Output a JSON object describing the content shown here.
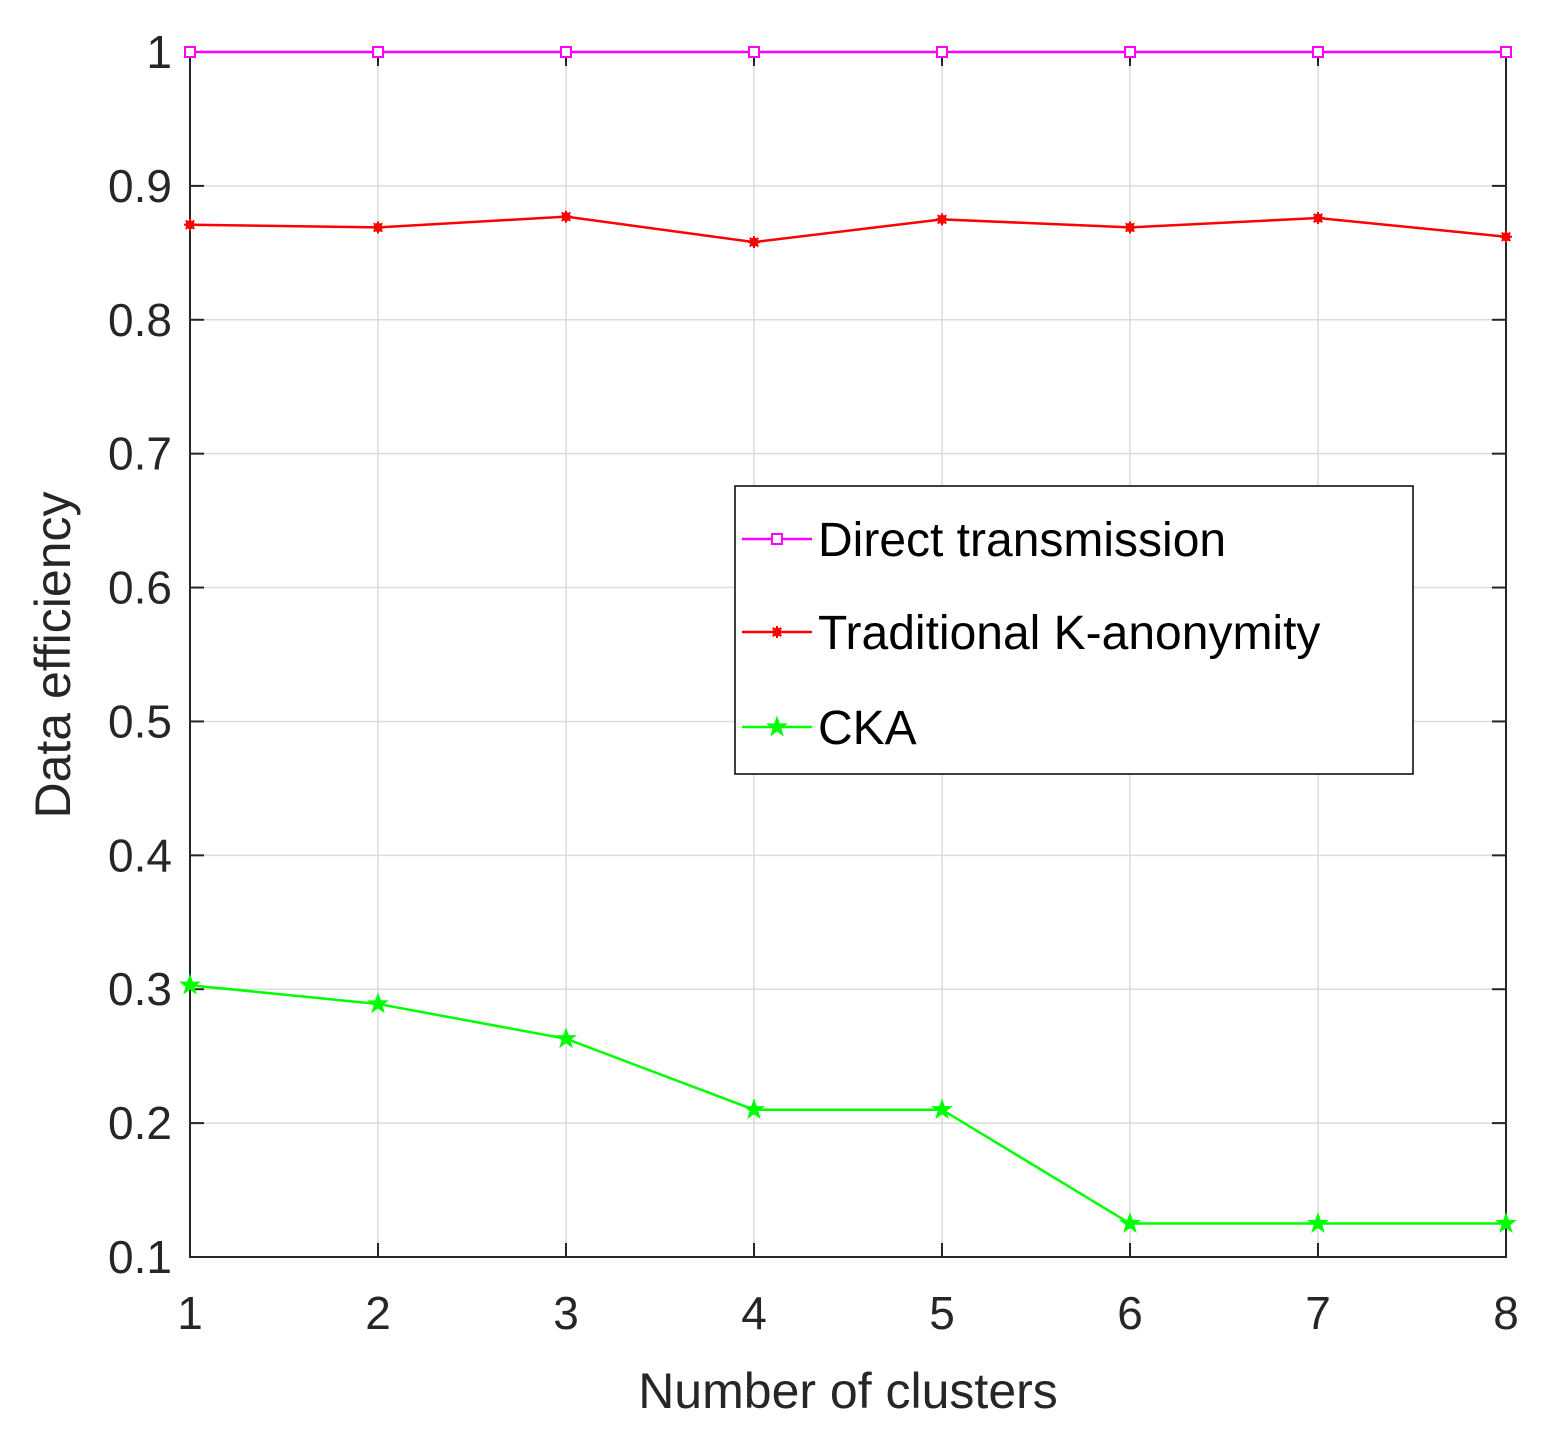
{
  "chart_data": {
    "type": "line",
    "title": "",
    "xlabel": "Number of clusters",
    "ylabel": "Data efficiency",
    "x": [
      1,
      2,
      3,
      4,
      5,
      6,
      7,
      8
    ],
    "xlim": [
      1,
      8
    ],
    "ylim": [
      0.1,
      1
    ],
    "xticks": [
      "1",
      "2",
      "3",
      "4",
      "5",
      "6",
      "7",
      "8"
    ],
    "yticks": [
      "0.1",
      "0.2",
      "0.3",
      "0.4",
      "0.5",
      "0.6",
      "0.7",
      "0.8",
      "0.9",
      "1"
    ],
    "grid": true,
    "legend_position": "center-right",
    "series": [
      {
        "name": "Direct transmission",
        "color": "#ff00ff",
        "marker": "square",
        "values": [
          1,
          1,
          1,
          1,
          1,
          1,
          1,
          1
        ]
      },
      {
        "name": "Traditional K-anonymity",
        "color": "#ff0000",
        "marker": "asterisk",
        "values": [
          0.871,
          0.869,
          0.877,
          0.858,
          0.875,
          0.869,
          0.876,
          0.862
        ]
      },
      {
        "name": "CKA",
        "color": "#00ff00",
        "marker": "star",
        "values": [
          0.303,
          0.289,
          0.263,
          0.21,
          0.21,
          0.125,
          0.125,
          0.125
        ]
      }
    ]
  }
}
